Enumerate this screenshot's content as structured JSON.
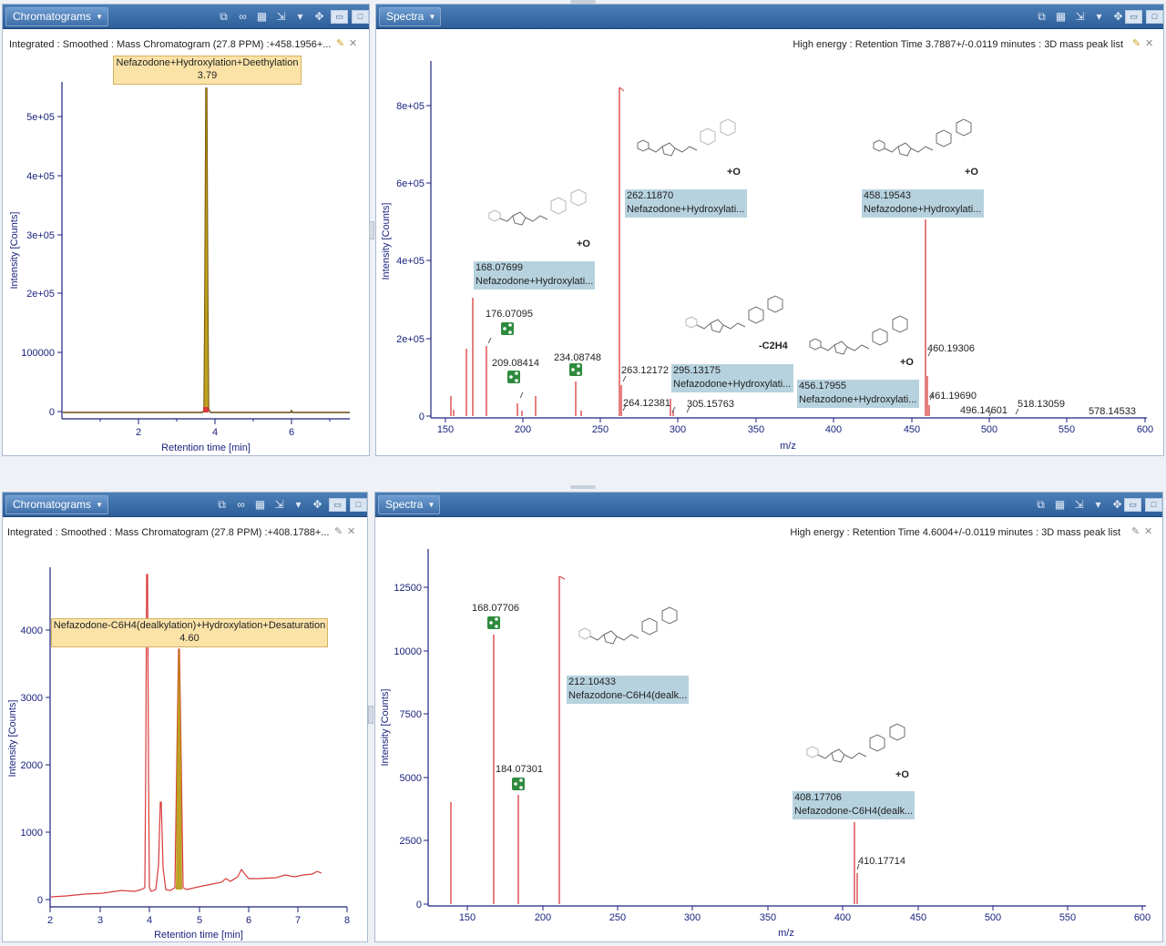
{
  "top_left": {
    "panel_title": "Chromatograms",
    "caption": "Integrated : Smoothed : Mass Chromatogram (27.8 PPM) :+458.1956+...",
    "peak_label": "Nefazodone+Hydroxylation+Deethylation",
    "peak_rt": "3.79",
    "xlabel": "Retention time [min]",
    "ylabel": "Intensity [Counts]",
    "xticks": [
      "2",
      "4",
      "6"
    ],
    "yticks": [
      "0",
      "100000",
      "2e+05",
      "3e+05",
      "4e+05",
      "5e+05"
    ],
    "trace_color": "#6b4a12"
  },
  "top_right": {
    "panel_title": "Spectra",
    "caption": "High energy : Retention Time 3.7887+/-0.0119 minutes : 3D mass peak list",
    "xlabel": "m/z",
    "ylabel": "Intensity [Counts]",
    "xticks": [
      "150",
      "200",
      "250",
      "300",
      "350",
      "400",
      "450",
      "500",
      "550",
      "600"
    ],
    "yticks": [
      "0",
      "2e+05",
      "4e+05",
      "6e+05",
      "8e+05"
    ],
    "peak_labels": [
      "176.07095",
      "209.08414",
      "234.08748",
      "263.12172",
      "264.12381",
      "305.15763",
      "460.19306",
      "461.19690",
      "496.14601",
      "518.13059",
      "578.14533"
    ],
    "annotations": [
      {
        "mz": "168.07699",
        "name": "Nefazodone+Hydroxylati..."
      },
      {
        "mz": "262.11870",
        "name": "Nefazodone+Hydroxylati..."
      },
      {
        "mz": "458.19543",
        "name": "Nefazodone+Hydroxylati..."
      },
      {
        "mz": "295.13175",
        "name": "Nefazodone+Hydroxylati..."
      },
      {
        "mz": "456.17955",
        "name": "Nefazodone+Hydroxylati..."
      }
    ],
    "struct_tags": [
      "+O",
      "+O",
      "+O",
      "-C2H4",
      "+O"
    ]
  },
  "bottom_left": {
    "panel_title": "Chromatograms",
    "caption": "Integrated : Smoothed : Mass Chromatogram (27.8 PPM) :+408.1788+...",
    "peak_label": "Nefazodone-C6H4(dealkylation)+Hydroxylation+Desaturation",
    "peak_rt": "4.60",
    "xlabel": "Retention time [min]",
    "ylabel": "Intensity [Counts]",
    "xticks": [
      "2",
      "3",
      "4",
      "5",
      "6",
      "7",
      "8"
    ],
    "yticks": [
      "0",
      "1000",
      "2000",
      "3000",
      "4000"
    ]
  },
  "bottom_right": {
    "panel_title": "Spectra",
    "caption": "High energy : Retention Time 4.6004+/-0.0119 minutes : 3D mass peak list",
    "xlabel": "m/z",
    "ylabel": "Intensity [Counts]",
    "xticks": [
      "150",
      "200",
      "250",
      "300",
      "350",
      "400",
      "450",
      "500",
      "550",
      "600"
    ],
    "yticks": [
      "0",
      "2500",
      "5000",
      "7500",
      "10000",
      "12500"
    ],
    "peak_labels": [
      "168.07706",
      "184.07301",
      "410.17714"
    ],
    "annotations": [
      {
        "mz": "212.10433",
        "name": "Nefazodone-C6H4(dealk..."
      },
      {
        "mz": "408.17706",
        "name": "Nefazodone-C6H4(dealk..."
      }
    ],
    "struct_tags": [
      "+O"
    ]
  },
  "colors": {
    "titlebar": "#3a6ba5",
    "spectrum_line": "#d83a3a",
    "annotation_bg": "#b7d2df",
    "peak_label_bg": "#fbe3a8",
    "share_icon": "#2e8b3e"
  }
}
